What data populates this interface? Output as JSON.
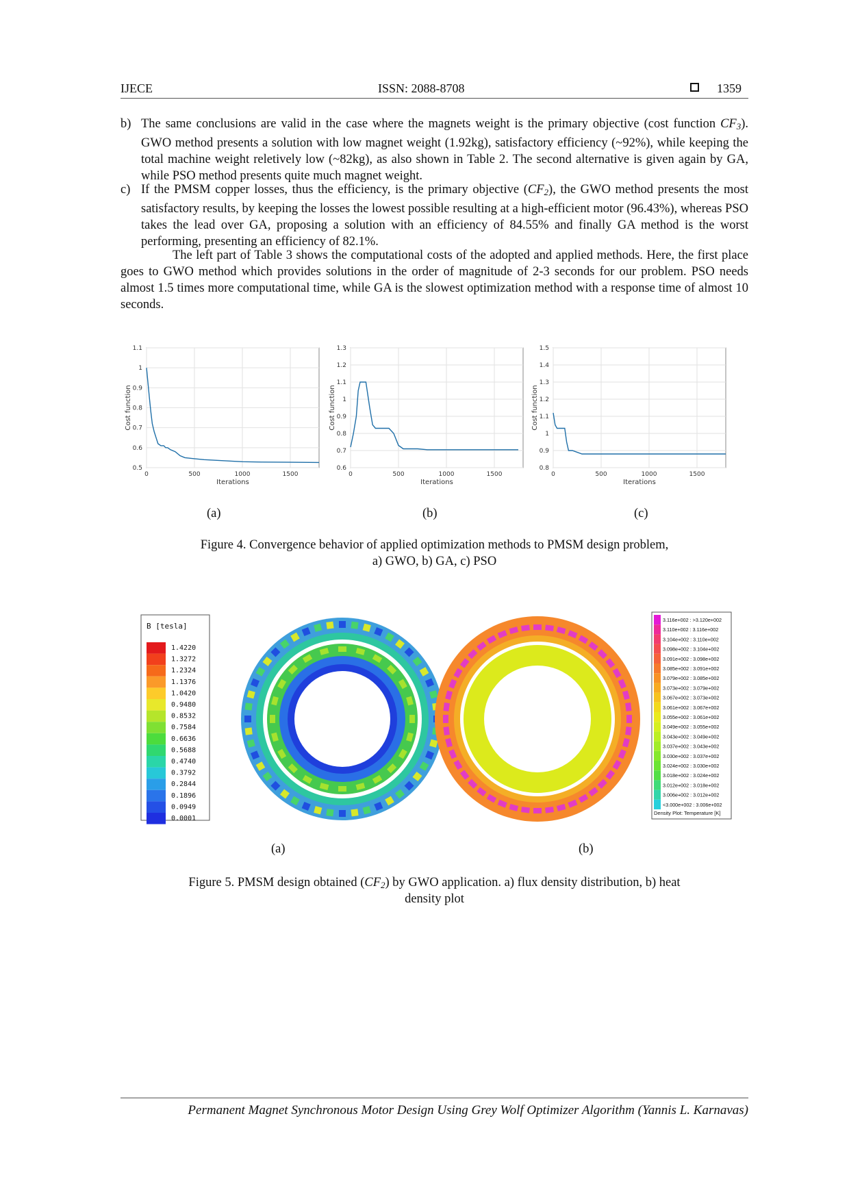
{
  "header": {
    "journal": "IJECE",
    "issn": "ISSN: 2088-8708",
    "page": "1359"
  },
  "list": [
    {
      "label": "b)",
      "parts": [
        "The same conclusions are valid in the case where the magnets weight is the primary objective (cost function ",
        "CF",
        "3",
        "). GWO method presents a solution with low magnet weight (1.92kg), satisfactory efficiency (~92%), while keeping the total machine weight reletively low (~82kg), as also shown in Table 2. The second alternative is given again by GA, while PSO method presents quite much magnet weight."
      ]
    },
    {
      "label": "c)",
      "parts": [
        "If the PMSM copper losses, thus the efficiency, is the primary objective (",
        "CF",
        "2",
        "), the GWO method presents the most satisfactory results, by keeping the losses the lowest possible resulting at a high-efficient motor (96.43%), whereas PSO takes the lead over GA, proposing a solution with an efficiency of 84.55% and finally GA method is the worst performing, presenting an efficiency of 82.1%."
      ]
    }
  ],
  "paragraph": "The left part of Table 3 shows the computational costs of the adopted and applied methods. Here, the first place goes to GWO method which provides solutions in the order of magnitude of 2-3 seconds for our problem. PSO needs almost 1.5 times more computational time, while GA is the slowest optimization method with a response time of almost 10 seconds.",
  "figure4": {
    "caption_line1": "Figure 4. Convergence behavior of applied optimization methods to PMSM design problem,",
    "caption_line2": "a)    GWO, b) GA, c) PSO",
    "sublabels": [
      "(a)",
      "(b)",
      "(c)"
    ]
  },
  "chart_data": [
    {
      "type": "line",
      "title": "",
      "xlabel": "Iterations",
      "ylabel": "Cost function",
      "xlim": [
        0,
        1800
      ],
      "ylim": [
        0.5,
        1.1
      ],
      "xticks": [
        "0",
        "500",
        "1000",
        "1500"
      ],
      "yticks": [
        "0.5",
        "0.6",
        "0.7",
        "0.8",
        "0.9",
        "1",
        "1.1"
      ],
      "color": "#1f6fa8",
      "series": [
        {
          "x": [
            0,
            10,
            20,
            30,
            45,
            60,
            80,
            100,
            120,
            150,
            180,
            200,
            220,
            250,
            300,
            350,
            400,
            500,
            600,
            800,
            1000,
            1200,
            1500,
            1800
          ],
          "y": [
            1.0,
            0.95,
            0.9,
            0.85,
            0.78,
            0.72,
            0.68,
            0.65,
            0.62,
            0.61,
            0.61,
            0.6,
            0.6,
            0.59,
            0.58,
            0.56,
            0.55,
            0.545,
            0.54,
            0.535,
            0.53,
            0.528,
            0.527,
            0.526
          ]
        }
      ]
    },
    {
      "type": "line",
      "title": "",
      "xlabel": "Iterations",
      "ylabel": "Cost function",
      "xlim": [
        0,
        1800
      ],
      "ylim": [
        0.6,
        1.3
      ],
      "xticks": [
        "0",
        "500",
        "1000",
        "1500"
      ],
      "yticks": [
        "0.6",
        "0.7",
        "0.8",
        "0.9",
        "1",
        "1.1",
        "1.2",
        "1.3"
      ],
      "color": "#1f6fa8",
      "series": [
        {
          "x": [
            0,
            30,
            60,
            80,
            100,
            120,
            160,
            200,
            230,
            260,
            300,
            400,
            450,
            500,
            550,
            600,
            700,
            800,
            900,
            1000,
            1500,
            1750
          ],
          "y": [
            0.72,
            0.8,
            0.9,
            1.05,
            1.1,
            1.1,
            1.1,
            0.95,
            0.85,
            0.83,
            0.83,
            0.83,
            0.8,
            0.73,
            0.71,
            0.71,
            0.71,
            0.705,
            0.705,
            0.705,
            0.705,
            0.705
          ]
        }
      ]
    },
    {
      "type": "line",
      "title": "",
      "xlabel": "Iterations",
      "ylabel": "Cost function",
      "xlim": [
        0,
        1800
      ],
      "ylim": [
        0.8,
        1.5
      ],
      "xticks": [
        "0",
        "500",
        "1000",
        "1500"
      ],
      "yticks": [
        "0.8",
        "0.9",
        "1",
        "1.1",
        "1.2",
        "1.3",
        "1.4",
        "1.5"
      ],
      "color": "#1f6fa8",
      "series": [
        {
          "x": [
            0,
            20,
            40,
            60,
            80,
            100,
            120,
            140,
            160,
            200,
            300,
            500,
            800,
            1000,
            1500,
            1800
          ],
          "y": [
            1.12,
            1.05,
            1.03,
            1.03,
            1.03,
            1.03,
            1.03,
            0.95,
            0.9,
            0.9,
            0.88,
            0.88,
            0.88,
            0.88,
            0.88,
            0.88
          ]
        }
      ]
    }
  ],
  "figure5": {
    "sublabels": [
      "(a)",
      "(b)"
    ],
    "caption_pre": "Figure 5. PMSM design obtained (",
    "caption_cf": "CF",
    "caption_sub": "2",
    "caption_post": ") by GWO application. a) flux density distribution, b) heat",
    "caption_line2": "density plot",
    "legend_a_title": "B [tesla]",
    "legend_a_values": [
      "1.4220",
      "1.3272",
      "1.2324",
      "1.1376",
      "1.0420",
      "0.9480",
      "0.8532",
      "0.7584",
      "0.6636",
      "0.5688",
      "0.4740",
      "0.3792",
      "0.2844",
      "0.1896",
      "0.0949",
      "0.0001"
    ],
    "legend_a_colors": [
      "#e31a1c",
      "#f2401c",
      "#f66a1a",
      "#fb9a29",
      "#fdcb2a",
      "#e8e82b",
      "#b5e52b",
      "#7fe033",
      "#4cdc3d",
      "#30d870",
      "#2ad6a8",
      "#27c8d8",
      "#2a9ee8",
      "#2a74ea",
      "#2450e6",
      "#1f2fe0"
    ],
    "legend_b_values": [
      "3.116e+002 : >3.120e+002",
      "3.110e+002 : 3.116e+002",
      "3.104e+002 : 3.110e+002",
      "3.098e+002 : 3.104e+002",
      "3.091e+002 : 3.098e+002",
      "3.085e+002 : 3.091e+002",
      "3.079e+002 : 3.085e+002",
      "3.073e+002 : 3.079e+002",
      "3.067e+002 : 3.073e+002",
      "3.061e+002 : 3.067e+002",
      "3.055e+002 : 3.061e+002",
      "3.049e+002 : 3.055e+002",
      "3.043e+002 : 3.049e+002",
      "3.037e+002 : 3.043e+002",
      "3.030e+002 : 3.037e+002",
      "3.024e+002 : 3.030e+002",
      "3.018e+002 : 3.024e+002",
      "3.012e+002 : 3.018e+002",
      "3.006e+002 : 3.012e+002",
      "<3.000e+002 : 3.006e+002"
    ],
    "legend_b_colors": [
      "#e41ad6",
      "#ee2a9a",
      "#f23d6f",
      "#f44e50",
      "#f5623a",
      "#f67a2c",
      "#f79226",
      "#f7aa22",
      "#f6c21f",
      "#f2d91c",
      "#eaea1c",
      "#d6ef1f",
      "#bcef23",
      "#a2ec27",
      "#86e82c",
      "#6be433",
      "#53df46",
      "#3fdb78",
      "#32d6aa",
      "#27d0dc"
    ],
    "legend_b_footer": "Density Plot: Temperature [K]"
  },
  "footer": "Permanent Magnet Synchronous Motor Design Using Grey Wolf Optimizer Algorithm (Yannis L. Karnavas)"
}
